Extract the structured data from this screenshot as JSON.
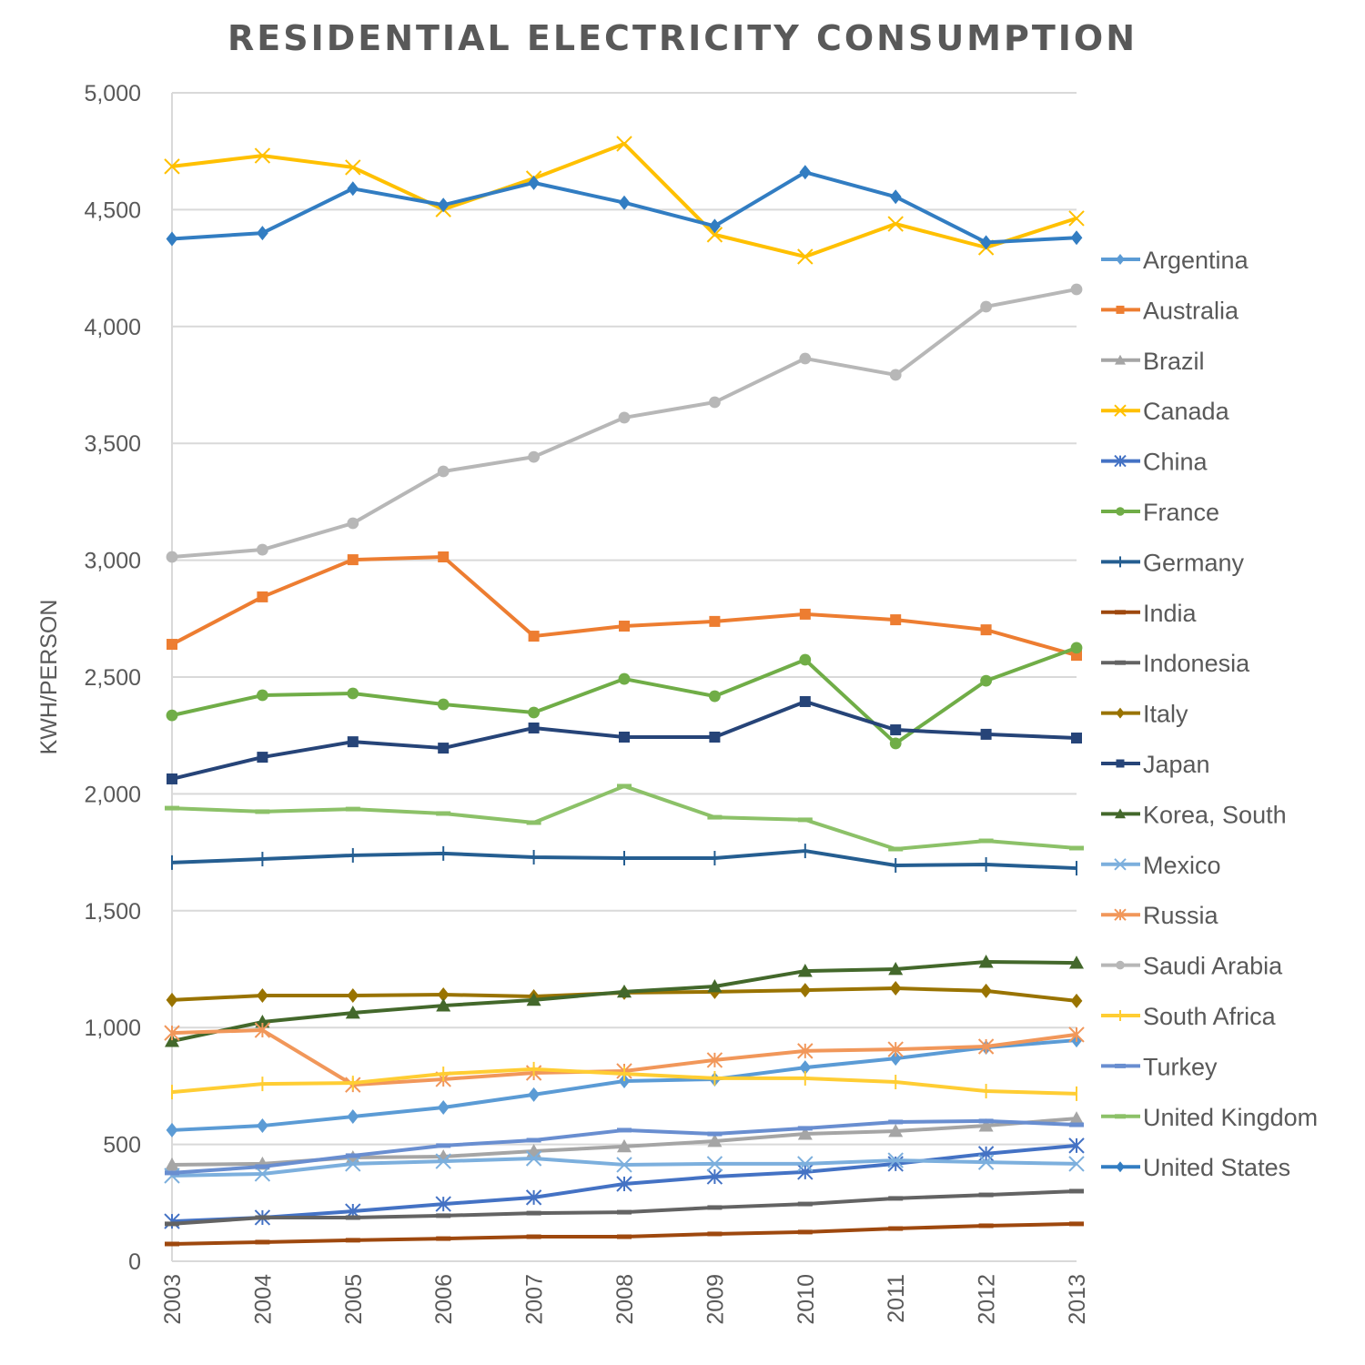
{
  "chart_data": {
    "type": "line",
    "title": "RESIDENTIAL ELECTRICITY CONSUMPTION",
    "xlabel": "",
    "ylabel": "KWH/PERSON",
    "x": [
      "2003",
      "2004",
      "2005",
      "2006",
      "2007",
      "2008",
      "2009",
      "2010",
      "2011",
      "2012",
      "2013"
    ],
    "ylim": [
      0,
      5000
    ],
    "yticks": [
      0,
      500,
      1000,
      1500,
      2000,
      2500,
      3000,
      3500,
      4000,
      4500,
      5000
    ],
    "ytick_labels": [
      "0",
      "500",
      "1,000",
      "1,500",
      "2,000",
      "2,500",
      "3,000",
      "3,500",
      "4,000",
      "4,500",
      "5,000"
    ],
    "grid": true,
    "legend_position": "right",
    "series": [
      {
        "name": "Argentina",
        "color": "#5b9bd5",
        "marker": "diamond",
        "values": [
          561,
          580,
          619,
          658,
          713,
          771,
          779,
          829,
          868,
          915,
          946
        ]
      },
      {
        "name": "Australia",
        "color": "#ed7d31",
        "marker": "square",
        "values": [
          2640,
          2843,
          3002,
          3014,
          2675,
          2718,
          2738,
          2769,
          2745,
          2702,
          2593
        ]
      },
      {
        "name": "Brazil",
        "color": "#a5a5a5",
        "marker": "triangle",
        "values": [
          413,
          417,
          444,
          448,
          471,
          491,
          514,
          545,
          557,
          580,
          611
        ]
      },
      {
        "name": "Canada",
        "color": "#ffc000",
        "marker": "x",
        "values": [
          4685,
          4731,
          4681,
          4501,
          4634,
          4782,
          4393,
          4299,
          4439,
          4338,
          4463
        ]
      },
      {
        "name": "China",
        "color": "#4472c4",
        "marker": "star",
        "values": [
          171,
          187,
          214,
          245,
          273,
          331,
          362,
          382,
          417,
          460,
          495
        ]
      },
      {
        "name": "France",
        "color": "#70ad47",
        "marker": "circle",
        "values": [
          2336,
          2422,
          2430,
          2383,
          2348,
          2492,
          2418,
          2574,
          2216,
          2484,
          2625
        ]
      },
      {
        "name": "Germany",
        "color": "#255e91",
        "marker": "plus",
        "values": [
          1706,
          1721,
          1737,
          1745,
          1729,
          1725,
          1725,
          1756,
          1694,
          1698,
          1682
        ]
      },
      {
        "name": "India",
        "color": "#9e480e",
        "marker": "dash",
        "values": [
          74,
          82,
          90,
          97,
          105,
          105,
          117,
          125,
          140,
          152,
          160
        ]
      },
      {
        "name": "Indonesia",
        "color": "#636363",
        "marker": "dash",
        "values": [
          160,
          187,
          187,
          195,
          206,
          210,
          230,
          245,
          269,
          284,
          300
        ]
      },
      {
        "name": "Italy",
        "color": "#997300",
        "marker": "diamond",
        "values": [
          1118,
          1137,
          1137,
          1141,
          1133,
          1149,
          1153,
          1160,
          1168,
          1157,
          1114
        ]
      },
      {
        "name": "Japan",
        "color": "#264478",
        "marker": "square",
        "values": [
          2064,
          2157,
          2223,
          2196,
          2282,
          2243,
          2243,
          2395,
          2274,
          2255,
          2239
        ]
      },
      {
        "name": "Korea, South",
        "color": "#43682b",
        "marker": "triangle",
        "values": [
          942,
          1024,
          1063,
          1094,
          1118,
          1153,
          1176,
          1242,
          1250,
          1281,
          1277
        ]
      },
      {
        "name": "Mexico",
        "color": "#7cafdd",
        "marker": "x",
        "values": [
          366,
          374,
          417,
          428,
          440,
          413,
          417,
          417,
          432,
          424,
          417
        ]
      },
      {
        "name": "Russia",
        "color": "#f1975a",
        "marker": "star",
        "values": [
          977,
          989,
          755,
          779,
          806,
          814,
          861,
          900,
          907,
          919,
          970
        ]
      },
      {
        "name": "Saudi Arabia",
        "color": "#b7b7b7",
        "marker": "circle",
        "values": [
          3014,
          3045,
          3158,
          3380,
          3442,
          3610,
          3676,
          3863,
          3793,
          4085,
          4159
        ]
      },
      {
        "name": "South Africa",
        "color": "#ffcd33",
        "marker": "plus",
        "values": [
          724,
          759,
          763,
          802,
          822,
          802,
          783,
          783,
          767,
          728,
          717
        ]
      },
      {
        "name": "Turkey",
        "color": "#698ed0",
        "marker": "dash",
        "values": [
          378,
          405,
          452,
          495,
          518,
          561,
          545,
          569,
          596,
          600,
          584
        ]
      },
      {
        "name": "United Kingdom",
        "color": "#8cc168",
        "marker": "dash",
        "values": [
          1939,
          1924,
          1935,
          1916,
          1877,
          2033,
          1900,
          1889,
          1764,
          1799,
          1768
        ]
      },
      {
        "name": "United States",
        "color": "#327dc2",
        "marker": "diamond",
        "values": [
          4375,
          4400,
          4590,
          4520,
          4615,
          4530,
          4430,
          4660,
          4555,
          4360,
          4380
        ]
      }
    ]
  }
}
